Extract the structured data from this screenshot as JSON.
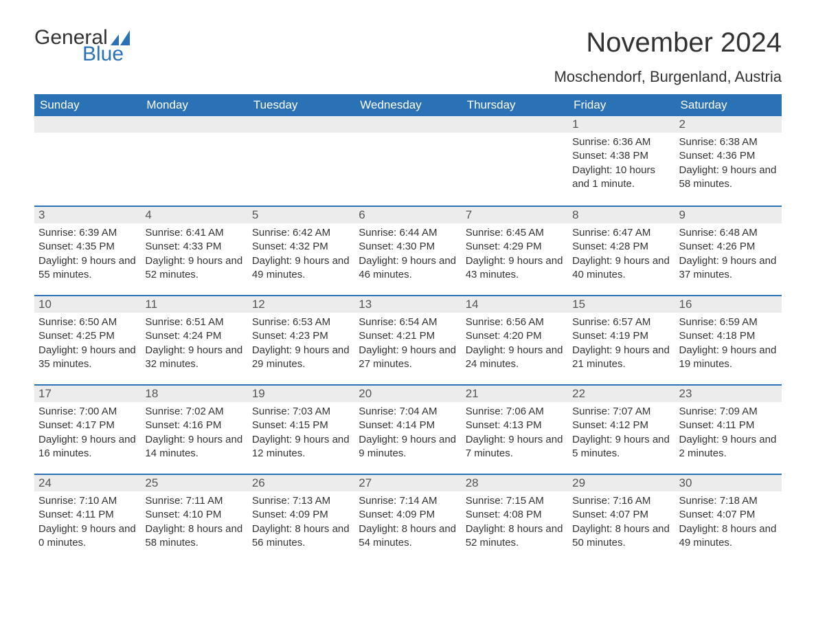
{
  "logo": {
    "text1": "General",
    "text2": "Blue",
    "sail_color": "#2a72b5",
    "text1_color": "#333333"
  },
  "title": "November 2024",
  "location": "Moschendorf, Burgenland, Austria",
  "colors": {
    "header_bg": "#2a72b5",
    "header_text": "#ffffff",
    "day_header_bg": "#ececec",
    "row_divider": "#2a72b5",
    "body_text": "#333333",
    "background": "#ffffff"
  },
  "typography": {
    "title_fontsize": 40,
    "location_fontsize": 22,
    "weekday_fontsize": 17,
    "daynum_fontsize": 17,
    "body_fontsize": 15
  },
  "weekdays": [
    "Sunday",
    "Monday",
    "Tuesday",
    "Wednesday",
    "Thursday",
    "Friday",
    "Saturday"
  ],
  "weeks": [
    [
      null,
      null,
      null,
      null,
      null,
      {
        "n": "1",
        "sr": "Sunrise: 6:36 AM",
        "ss": "Sunset: 4:38 PM",
        "dl": "Daylight: 10 hours and 1 minute."
      },
      {
        "n": "2",
        "sr": "Sunrise: 6:38 AM",
        "ss": "Sunset: 4:36 PM",
        "dl": "Daylight: 9 hours and 58 minutes."
      }
    ],
    [
      {
        "n": "3",
        "sr": "Sunrise: 6:39 AM",
        "ss": "Sunset: 4:35 PM",
        "dl": "Daylight: 9 hours and 55 minutes."
      },
      {
        "n": "4",
        "sr": "Sunrise: 6:41 AM",
        "ss": "Sunset: 4:33 PM",
        "dl": "Daylight: 9 hours and 52 minutes."
      },
      {
        "n": "5",
        "sr": "Sunrise: 6:42 AM",
        "ss": "Sunset: 4:32 PM",
        "dl": "Daylight: 9 hours and 49 minutes."
      },
      {
        "n": "6",
        "sr": "Sunrise: 6:44 AM",
        "ss": "Sunset: 4:30 PM",
        "dl": "Daylight: 9 hours and 46 minutes."
      },
      {
        "n": "7",
        "sr": "Sunrise: 6:45 AM",
        "ss": "Sunset: 4:29 PM",
        "dl": "Daylight: 9 hours and 43 minutes."
      },
      {
        "n": "8",
        "sr": "Sunrise: 6:47 AM",
        "ss": "Sunset: 4:28 PM",
        "dl": "Daylight: 9 hours and 40 minutes."
      },
      {
        "n": "9",
        "sr": "Sunrise: 6:48 AM",
        "ss": "Sunset: 4:26 PM",
        "dl": "Daylight: 9 hours and 37 minutes."
      }
    ],
    [
      {
        "n": "10",
        "sr": "Sunrise: 6:50 AM",
        "ss": "Sunset: 4:25 PM",
        "dl": "Daylight: 9 hours and 35 minutes."
      },
      {
        "n": "11",
        "sr": "Sunrise: 6:51 AM",
        "ss": "Sunset: 4:24 PM",
        "dl": "Daylight: 9 hours and 32 minutes."
      },
      {
        "n": "12",
        "sr": "Sunrise: 6:53 AM",
        "ss": "Sunset: 4:23 PM",
        "dl": "Daylight: 9 hours and 29 minutes."
      },
      {
        "n": "13",
        "sr": "Sunrise: 6:54 AM",
        "ss": "Sunset: 4:21 PM",
        "dl": "Daylight: 9 hours and 27 minutes."
      },
      {
        "n": "14",
        "sr": "Sunrise: 6:56 AM",
        "ss": "Sunset: 4:20 PM",
        "dl": "Daylight: 9 hours and 24 minutes."
      },
      {
        "n": "15",
        "sr": "Sunrise: 6:57 AM",
        "ss": "Sunset: 4:19 PM",
        "dl": "Daylight: 9 hours and 21 minutes."
      },
      {
        "n": "16",
        "sr": "Sunrise: 6:59 AM",
        "ss": "Sunset: 4:18 PM",
        "dl": "Daylight: 9 hours and 19 minutes."
      }
    ],
    [
      {
        "n": "17",
        "sr": "Sunrise: 7:00 AM",
        "ss": "Sunset: 4:17 PM",
        "dl": "Daylight: 9 hours and 16 minutes."
      },
      {
        "n": "18",
        "sr": "Sunrise: 7:02 AM",
        "ss": "Sunset: 4:16 PM",
        "dl": "Daylight: 9 hours and 14 minutes."
      },
      {
        "n": "19",
        "sr": "Sunrise: 7:03 AM",
        "ss": "Sunset: 4:15 PM",
        "dl": "Daylight: 9 hours and 12 minutes."
      },
      {
        "n": "20",
        "sr": "Sunrise: 7:04 AM",
        "ss": "Sunset: 4:14 PM",
        "dl": "Daylight: 9 hours and 9 minutes."
      },
      {
        "n": "21",
        "sr": "Sunrise: 7:06 AM",
        "ss": "Sunset: 4:13 PM",
        "dl": "Daylight: 9 hours and 7 minutes."
      },
      {
        "n": "22",
        "sr": "Sunrise: 7:07 AM",
        "ss": "Sunset: 4:12 PM",
        "dl": "Daylight: 9 hours and 5 minutes."
      },
      {
        "n": "23",
        "sr": "Sunrise: 7:09 AM",
        "ss": "Sunset: 4:11 PM",
        "dl": "Daylight: 9 hours and 2 minutes."
      }
    ],
    [
      {
        "n": "24",
        "sr": "Sunrise: 7:10 AM",
        "ss": "Sunset: 4:11 PM",
        "dl": "Daylight: 9 hours and 0 minutes."
      },
      {
        "n": "25",
        "sr": "Sunrise: 7:11 AM",
        "ss": "Sunset: 4:10 PM",
        "dl": "Daylight: 8 hours and 58 minutes."
      },
      {
        "n": "26",
        "sr": "Sunrise: 7:13 AM",
        "ss": "Sunset: 4:09 PM",
        "dl": "Daylight: 8 hours and 56 minutes."
      },
      {
        "n": "27",
        "sr": "Sunrise: 7:14 AM",
        "ss": "Sunset: 4:09 PM",
        "dl": "Daylight: 8 hours and 54 minutes."
      },
      {
        "n": "28",
        "sr": "Sunrise: 7:15 AM",
        "ss": "Sunset: 4:08 PM",
        "dl": "Daylight: 8 hours and 52 minutes."
      },
      {
        "n": "29",
        "sr": "Sunrise: 7:16 AM",
        "ss": "Sunset: 4:07 PM",
        "dl": "Daylight: 8 hours and 50 minutes."
      },
      {
        "n": "30",
        "sr": "Sunrise: 7:18 AM",
        "ss": "Sunset: 4:07 PM",
        "dl": "Daylight: 8 hours and 49 minutes."
      }
    ]
  ]
}
